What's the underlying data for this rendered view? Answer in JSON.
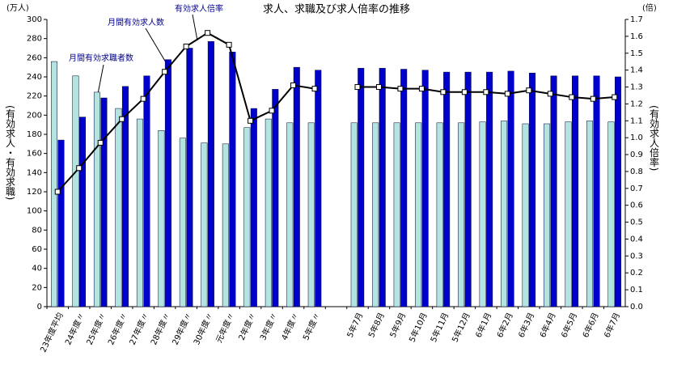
{
  "chart_data": {
    "type": "bar-line",
    "title": "求人、求職及び求人倍率の推移",
    "y_label": "(有効求人・有効求職)",
    "y2_label": "(有効求人倍率)",
    "y_unit": "(万人)",
    "y2_unit": "(倍)",
    "categories": [
      "23年度平均",
      "24年度〃",
      "25年度〃",
      "26年度〃",
      "27年度〃",
      "28年度〃",
      "29年度〃",
      "30年度〃",
      "元年度〃",
      "2年度〃",
      "3年度〃",
      "4年度〃",
      "5年度〃",
      null,
      "5年7月",
      "5年8月",
      "5年9月",
      "5年10月",
      "5年11月",
      "5年12月",
      "6年1月",
      "6年2月",
      "6年3月",
      "6年4月",
      "6年5月",
      "6年6月",
      "6年7月"
    ],
    "series": [
      {
        "name": "月間有効求職者数",
        "type": "bar",
        "color": "#b4e4e0",
        "values": [
          256,
          241,
          224,
          207,
          196,
          184,
          176,
          171,
          170,
          187,
          196,
          192,
          192,
          null,
          192,
          192,
          192,
          192,
          192,
          192,
          193,
          194,
          191,
          191,
          193,
          194,
          193
        ]
      },
      {
        "name": "月間有効求人数",
        "type": "bar",
        "color": "#0000cc",
        "values": [
          174,
          198,
          218,
          230,
          241,
          258,
          270,
          277,
          266,
          207,
          227,
          250,
          247,
          null,
          249,
          249,
          248,
          247,
          245,
          245,
          245,
          246,
          244,
          241,
          241,
          241,
          240
        ]
      },
      {
        "name": "有効求人倍率",
        "type": "line",
        "axis": "y2",
        "color": "#000000",
        "values": [
          0.68,
          0.82,
          0.97,
          1.11,
          1.23,
          1.39,
          1.54,
          1.62,
          1.55,
          1.1,
          1.16,
          1.31,
          1.29,
          null,
          1.3,
          1.3,
          1.29,
          1.29,
          1.27,
          1.27,
          1.27,
          1.26,
          1.28,
          1.26,
          1.24,
          1.23,
          1.24
        ]
      }
    ],
    "ylim": [
      0,
      300
    ],
    "yticks": [
      0,
      20,
      40,
      60,
      80,
      100,
      120,
      140,
      160,
      180,
      200,
      220,
      240,
      260,
      280,
      300
    ],
    "y2lim": [
      0,
      1.7
    ],
    "y2ticks": [
      {
        "value": 0,
        "label": "0.0"
      },
      0.1,
      0.2,
      0.3,
      0.4,
      0.5,
      0.6,
      0.7,
      0.8,
      0.9,
      {
        "value": 1,
        "label": "1.0"
      },
      1.1,
      1.2,
      1.3,
      1.4,
      1.5,
      1.6,
      1.7
    ],
    "grid": false
  }
}
